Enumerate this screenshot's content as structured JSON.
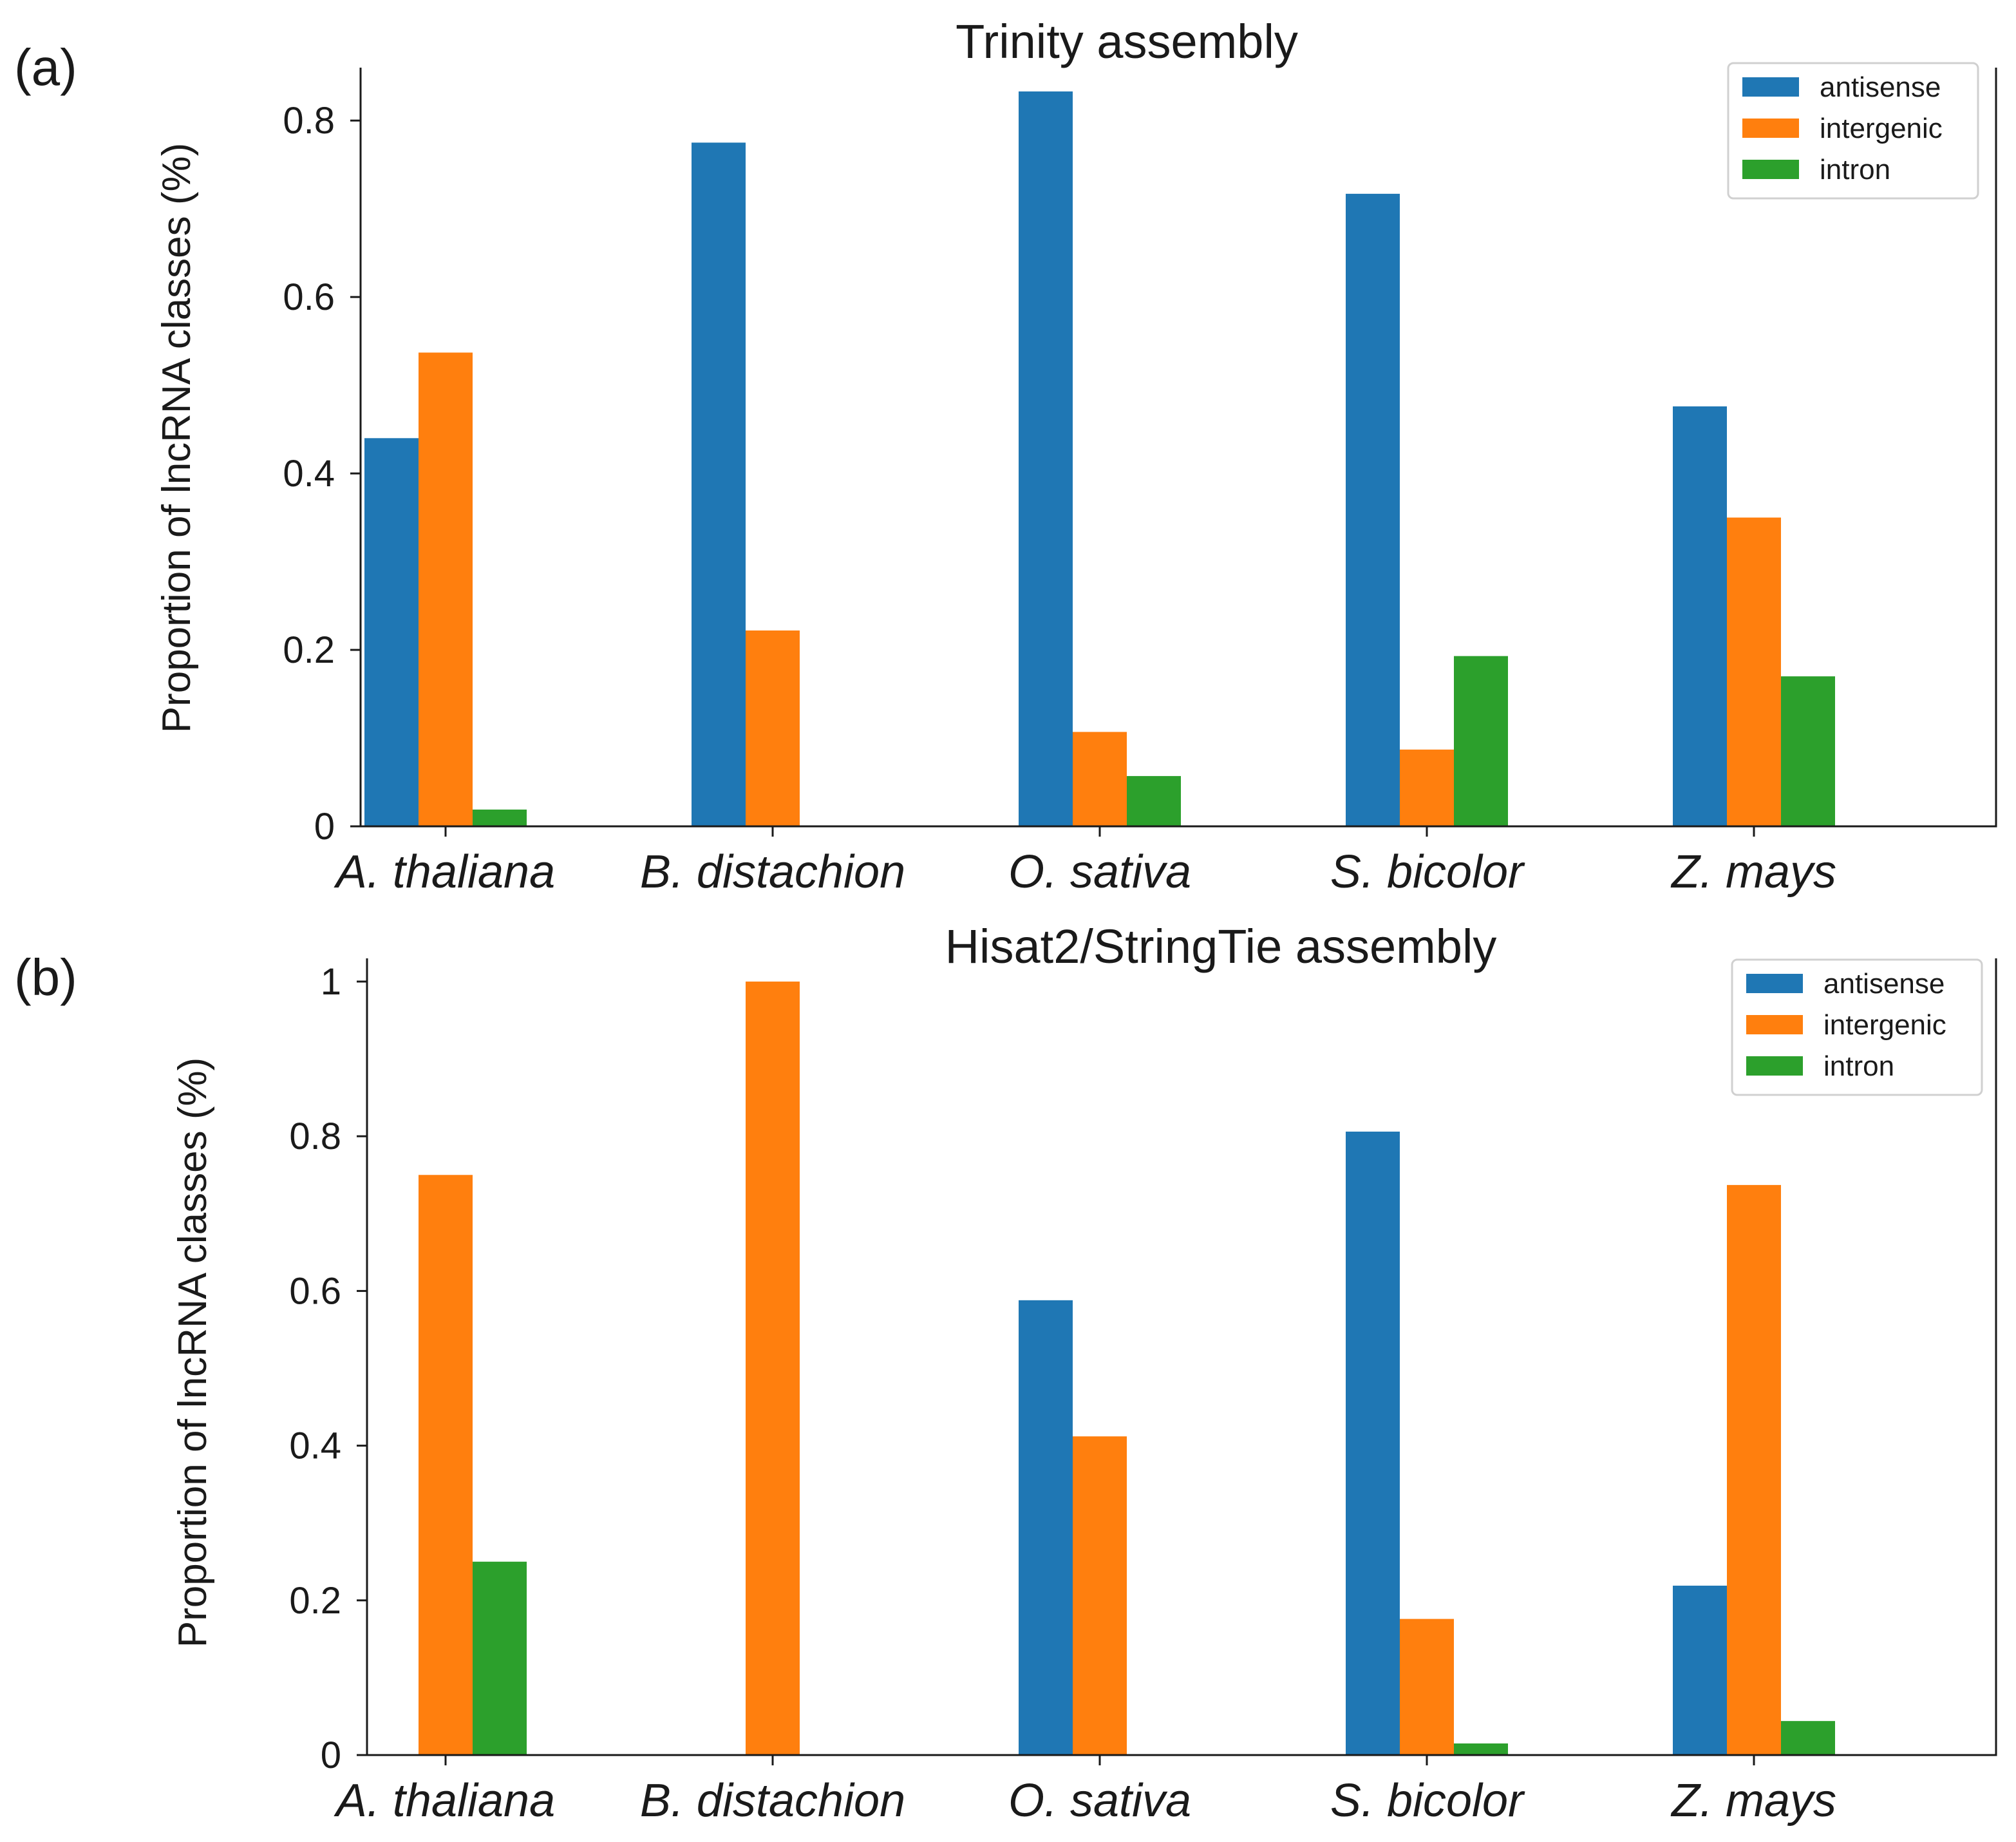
{
  "colors": {
    "antisense": "#1f77b4",
    "intergenic": "#ff7f0e",
    "intron": "#2ca02c"
  },
  "chart_data": [
    {
      "type": "bar",
      "panel_label": "(a)",
      "title": "Trinity assembly",
      "ylabel": "Proportion of lncRNA classes (%)",
      "xlabel": "",
      "ylim": [
        0,
        0.86
      ],
      "yticks": [
        0,
        0.2,
        0.4,
        0.6,
        0.8
      ],
      "ytick_labels": [
        "0",
        "0.2",
        "0.4",
        "0.6",
        "0.8"
      ],
      "categories": [
        "A. thaliana",
        "B. distachion",
        "O. sativa",
        "S. bicolor",
        "Z. mays"
      ],
      "legend_position": "top-right",
      "series": [
        {
          "name": "antisense",
          "values": [
            0.44,
            0.775,
            0.833,
            0.717,
            0.476
          ]
        },
        {
          "name": "intergenic",
          "values": [
            0.537,
            0.222,
            0.107,
            0.087,
            0.35
          ]
        },
        {
          "name": "intron",
          "values": [
            0.019,
            0.0,
            0.057,
            0.193,
            0.17
          ]
        }
      ]
    },
    {
      "type": "bar",
      "panel_label": "(b)",
      "title": "Hisat2/StringTie assembly",
      "ylabel": "Proportion of lncRNA classes (%)",
      "xlabel": "",
      "ylim": [
        0,
        1.03
      ],
      "yticks": [
        0,
        0.2,
        0.4,
        0.6,
        0.8,
        1.0
      ],
      "ytick_labels": [
        "0",
        "0.2",
        "0.4",
        "0.6",
        "0.8",
        "1"
      ],
      "categories": [
        "A. thaliana",
        "B. distachion",
        "O. sativa",
        "S. bicolor",
        "Z. mays"
      ],
      "legend_position": "top-right",
      "series": [
        {
          "name": "antisense",
          "values": [
            0.0,
            0.0,
            0.588,
            0.806,
            0.219
          ]
        },
        {
          "name": "intergenic",
          "values": [
            0.75,
            1.0,
            0.412,
            0.176,
            0.737
          ]
        },
        {
          "name": "intron",
          "values": [
            0.25,
            0.0,
            0.0,
            0.015,
            0.044
          ]
        }
      ]
    }
  ]
}
